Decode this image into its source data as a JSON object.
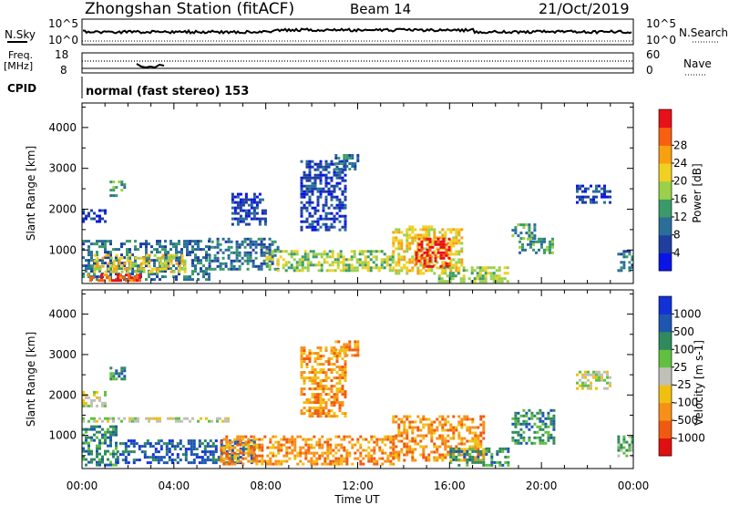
{
  "header": {
    "title": "Zhongshan Station (fitACF)",
    "beam": "Beam 14",
    "date": "21/Oct/2019",
    "cpid_label": "CPID",
    "cpid_text": "normal (fast stereo) 153"
  },
  "top_panels": {
    "nsky_label": "N.Sky",
    "nsearch_label": "N.Search",
    "nsky_ticks": [
      "10^5",
      "10^0"
    ],
    "nsearch_ticks": [
      "10^5",
      "10^0"
    ],
    "freq_label": "Freq.",
    "freq_unit": "[MHz]",
    "freq_ticks": [
      "18",
      "8"
    ],
    "nave_label": "Nave",
    "nave_ticks": [
      "60",
      "0"
    ]
  },
  "colors": {
    "power_scale": [
      "#0a14e6",
      "#1e3fa0",
      "#2a6e9a",
      "#3a9a6a",
      "#9ad04a",
      "#f0d020",
      "#f8a010",
      "#f86010",
      "#e8101a"
    ],
    "velocity_scale": [
      "#1232d8",
      "#1e56b0",
      "#2f8a5c",
      "#60c040",
      "#c0c0b8",
      "#f0c010",
      "#f89018",
      "#f05a10",
      "#e01010"
    ]
  },
  "chart_data": [
    {
      "type": "heatmap",
      "parameter": "Power",
      "title": "",
      "xlabel": "Time UT",
      "ylabel": "Slant Range [km]",
      "colorbar_label": "Power [dB]",
      "x_ticks": [
        "00:00",
        "04:00",
        "08:00",
        "12:00",
        "16:00",
        "20:00",
        "00:00"
      ],
      "y_ticks": [
        "1000",
        "2000",
        "3000",
        "4000"
      ],
      "xlim_hours": [
        0,
        24
      ],
      "ylim_km": [
        180,
        4600
      ],
      "colorbar_ticks": [
        "4",
        "8",
        "12",
        "16",
        "20",
        "24",
        "28"
      ],
      "colorbar_range": [
        0,
        32
      ],
      "echo_regions": [
        {
          "t0": 0.0,
          "t1": 5.5,
          "r0": 300,
          "r1": 1250,
          "level": 2
        },
        {
          "t0": 0.2,
          "t1": 2.5,
          "r0": 250,
          "r1": 420,
          "level": 7
        },
        {
          "t0": 0.5,
          "t1": 4.5,
          "r0": 450,
          "r1": 900,
          "level": 5
        },
        {
          "t0": 0.0,
          "t1": 1.0,
          "r0": 1700,
          "r1": 2000,
          "level": 1
        },
        {
          "t0": 1.2,
          "t1": 1.8,
          "r0": 2300,
          "r1": 2700,
          "level": 3
        },
        {
          "t0": 5.5,
          "t1": 8.5,
          "r0": 500,
          "r1": 1300,
          "level": 2
        },
        {
          "t0": 6.5,
          "t1": 8.0,
          "r0": 1600,
          "r1": 2400,
          "level": 1
        },
        {
          "t0": 8.0,
          "t1": 13.5,
          "r0": 500,
          "r1": 1000,
          "level": 4
        },
        {
          "t0": 9.5,
          "t1": 11.5,
          "r0": 1500,
          "r1": 3200,
          "level": 1
        },
        {
          "t0": 11.0,
          "t1": 12.0,
          "r0": 3000,
          "r1": 3350,
          "level": 2
        },
        {
          "t0": 13.5,
          "t1": 16.5,
          "r0": 400,
          "r1": 1600,
          "level": 5
        },
        {
          "t0": 14.5,
          "t1": 16.0,
          "r0": 600,
          "r1": 1300,
          "level": 8
        },
        {
          "t0": 15.5,
          "t1": 18.5,
          "r0": 250,
          "r1": 600,
          "level": 4
        },
        {
          "t0": 18.7,
          "t1": 19.7,
          "r0": 1300,
          "r1": 1650,
          "level": 3
        },
        {
          "t0": 19.0,
          "t1": 20.5,
          "r0": 900,
          "r1": 1300,
          "level": 3
        },
        {
          "t0": 21.5,
          "t1": 23.0,
          "r0": 2150,
          "r1": 2600,
          "level": 1
        },
        {
          "t0": 23.3,
          "t1": 24.0,
          "r0": 500,
          "r1": 1000,
          "level": 2
        }
      ]
    },
    {
      "type": "heatmap",
      "parameter": "Velocity",
      "title": "",
      "xlabel": "Time UT",
      "ylabel": "Slant Range [km]",
      "colorbar_label": "Velocity [m s-1]",
      "x_ticks": [
        "00:00",
        "04:00",
        "08:00",
        "12:00",
        "16:00",
        "20:00",
        "00:00"
      ],
      "y_ticks": [
        "1000",
        "2000",
        "3000",
        "4000"
      ],
      "xlim_hours": [
        0,
        24
      ],
      "ylim_km": [
        180,
        4600
      ],
      "colorbar_ticks": [
        "1000",
        "500",
        "100",
        "25",
        "-25",
        "-100",
        "-500",
        "-1000"
      ],
      "echo_regions": [
        {
          "t0": 0.0,
          "t1": 1.5,
          "r0": 300,
          "r1": 1250,
          "level": 2
        },
        {
          "t0": 1.5,
          "t1": 7.5,
          "r0": 300,
          "r1": 900,
          "level": 1
        },
        {
          "t0": 0.0,
          "t1": 6.5,
          "r0": 1380,
          "r1": 1450,
          "level": 4
        },
        {
          "t0": 0.0,
          "t1": 1.0,
          "r0": 1700,
          "r1": 2100,
          "level": 4
        },
        {
          "t0": 1.2,
          "t1": 1.8,
          "r0": 2300,
          "r1": 2700,
          "level": 2
        },
        {
          "t0": 6.0,
          "t1": 13.5,
          "r0": 300,
          "r1": 1000,
          "level": 6
        },
        {
          "t0": 9.5,
          "t1": 11.5,
          "r0": 1500,
          "r1": 3200,
          "level": 6
        },
        {
          "t0": 11.0,
          "t1": 12.0,
          "r0": 3000,
          "r1": 3350,
          "level": 6
        },
        {
          "t0": 13.5,
          "t1": 17.5,
          "r0": 400,
          "r1": 1500,
          "level": 6
        },
        {
          "t0": 16.0,
          "t1": 18.5,
          "r0": 250,
          "r1": 700,
          "level": 2
        },
        {
          "t0": 18.7,
          "t1": 20.5,
          "r0": 800,
          "r1": 1650,
          "level": 2
        },
        {
          "t0": 21.5,
          "t1": 23.0,
          "r0": 2150,
          "r1": 2600,
          "level": 4
        },
        {
          "t0": 23.3,
          "t1": 24.0,
          "r0": 500,
          "r1": 1000,
          "level": 3
        }
      ]
    }
  ],
  "panel_x_ticks": [
    "00:00",
    "04:00",
    "08:00",
    "12:00",
    "16:00",
    "20:00",
    "00:00"
  ],
  "x_axis_label": "Time UT"
}
